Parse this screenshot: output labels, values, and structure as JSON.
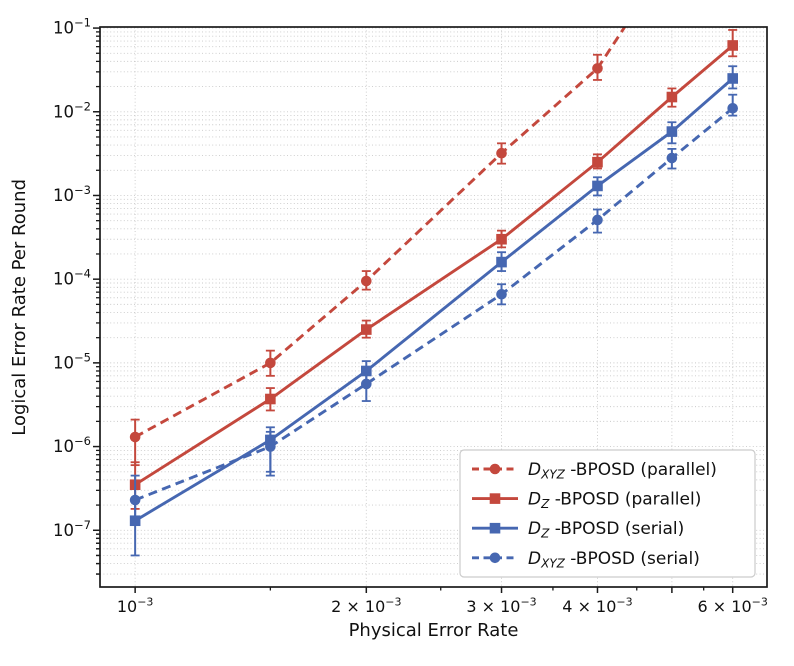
{
  "figure": {
    "xlabel": "Physical Error Rate",
    "ylabel": "Logical Error Rate Per Round"
  },
  "chart_data": {
    "type": "line",
    "title": "",
    "xlabel": "Physical Error Rate",
    "ylabel": "Logical Error Rate Per Round",
    "x_scale": "log",
    "y_scale": "log",
    "xlim": [
      0.0009,
      0.00665
    ],
    "ylim": [
      2.1e-08,
      0.103
    ],
    "grid": "dotted; horizontal major+minor log lines; vertical lines at major x ticks",
    "legend_position": "lower right",
    "colors": {
      "red": "#c4483d",
      "blue": "#4667b1",
      "grid": "#c9c9c9",
      "frame": "#1a1a1a"
    },
    "x_major_ticks": [
      0.001,
      0.002,
      0.003,
      0.004,
      0.005,
      0.006
    ],
    "x_minor_ticks": [
      0.0015,
      0.0025,
      0.0035,
      0.0045,
      0.0055
    ],
    "x_tick_labels": [
      {
        "at": 0.001,
        "coef": "",
        "base": "10",
        "exp": "−3"
      },
      {
        "at": 0.002,
        "coef": "2 × ",
        "base": "10",
        "exp": "−3"
      },
      {
        "at": 0.003,
        "coef": "3 × ",
        "base": "10",
        "exp": "−3"
      },
      {
        "at": 0.004,
        "coef": "4 × ",
        "base": "10",
        "exp": "−3"
      },
      {
        "at": 0.006,
        "coef": "6 × ",
        "base": "10",
        "exp": "−3"
      }
    ],
    "y_tick_labels": [
      {
        "at": 0.1,
        "base": "10",
        "exp": "−1"
      },
      {
        "at": 0.01,
        "base": "10",
        "exp": "−2"
      },
      {
        "at": 0.001,
        "base": "10",
        "exp": "−3"
      },
      {
        "at": 0.0001,
        "base": "10",
        "exp": "−4"
      },
      {
        "at": 1e-05,
        "base": "10",
        "exp": "−5"
      },
      {
        "at": 1e-06,
        "base": "10",
        "exp": "−6"
      },
      {
        "at": 1e-07,
        "base": "10",
        "exp": "−7"
      }
    ],
    "series": [
      {
        "label": "D_XYZ -BPOSD (parallel)",
        "label_parts": {
          "var": "D",
          "sub": "XYZ",
          "rest": " -BPOSD (parallel)"
        },
        "color": "red",
        "line": "dashed",
        "marker": "circle",
        "x": [
          0.001,
          0.0015,
          0.002,
          0.003,
          0.004
        ],
        "y": [
          1.3e-06,
          1e-05,
          9.5e-05,
          0.0032,
          0.033
        ],
        "y_lo": [
          6e-07,
          7e-06,
          7.5e-05,
          0.0024,
          0.024
        ],
        "y_hi": [
          2.1e-06,
          1.4e-05,
          0.000125,
          0.0042,
          0.048
        ],
        "line_exits_top_at_x": 0.00434
      },
      {
        "label": "D_Z -BPOSD (parallel)",
        "label_parts": {
          "var": "D",
          "sub": "Z",
          "rest": " -BPOSD (parallel)"
        },
        "color": "red",
        "line": "solid",
        "marker": "square",
        "x": [
          0.001,
          0.0015,
          0.002,
          0.003,
          0.004,
          0.005,
          0.006
        ],
        "y": [
          3.5e-07,
          3.7e-06,
          2.5e-05,
          0.0003,
          0.0025,
          0.015,
          0.062
        ],
        "y_lo": [
          1.8e-07,
          2.7e-06,
          2e-05,
          0.00024,
          0.0021,
          0.0115,
          0.046
        ],
        "y_hi": [
          6.5e-07,
          5e-06,
          3.2e-05,
          0.00038,
          0.0031,
          0.019,
          0.095
        ]
      },
      {
        "label": "D_Z -BPOSD (serial)",
        "label_parts": {
          "var": "D",
          "sub": "Z",
          "rest": " -BPOSD (serial)"
        },
        "color": "blue",
        "line": "solid",
        "marker": "square",
        "x": [
          0.001,
          0.0015,
          0.002,
          0.003,
          0.004,
          0.005,
          0.006
        ],
        "y": [
          1.3e-07,
          1.2e-06,
          8e-06,
          0.00016,
          0.0013,
          0.0058,
          0.025
        ],
        "y_lo": [
          5e-08,
          5e-07,
          5.5e-06,
          0.000125,
          0.001,
          0.0042,
          0.019
        ],
        "y_hi": [
          2.2e-07,
          1.7e-06,
          1.05e-05,
          0.00021,
          0.00165,
          0.0075,
          0.035
        ]
      },
      {
        "label": "D_XYZ -BPOSD (serial)",
        "label_parts": {
          "var": "D",
          "sub": "XYZ",
          "rest": " -BPOSD (serial)"
        },
        "color": "blue",
        "line": "dashed",
        "marker": "circle",
        "x": [
          0.001,
          0.0015,
          0.002,
          0.003,
          0.004,
          0.005,
          0.006
        ],
        "y": [
          2.3e-07,
          1e-06,
          5.6e-06,
          6.6e-05,
          0.00051,
          0.0028,
          0.011
        ],
        "y_lo": [
          1.4e-07,
          4.5e-07,
          3.5e-06,
          5e-05,
          0.00036,
          0.0021,
          0.009
        ],
        "y_hi": [
          4.5e-07,
          1.5e-06,
          7.5e-06,
          8.7e-05,
          0.00068,
          0.0036,
          0.016
        ]
      }
    ]
  }
}
